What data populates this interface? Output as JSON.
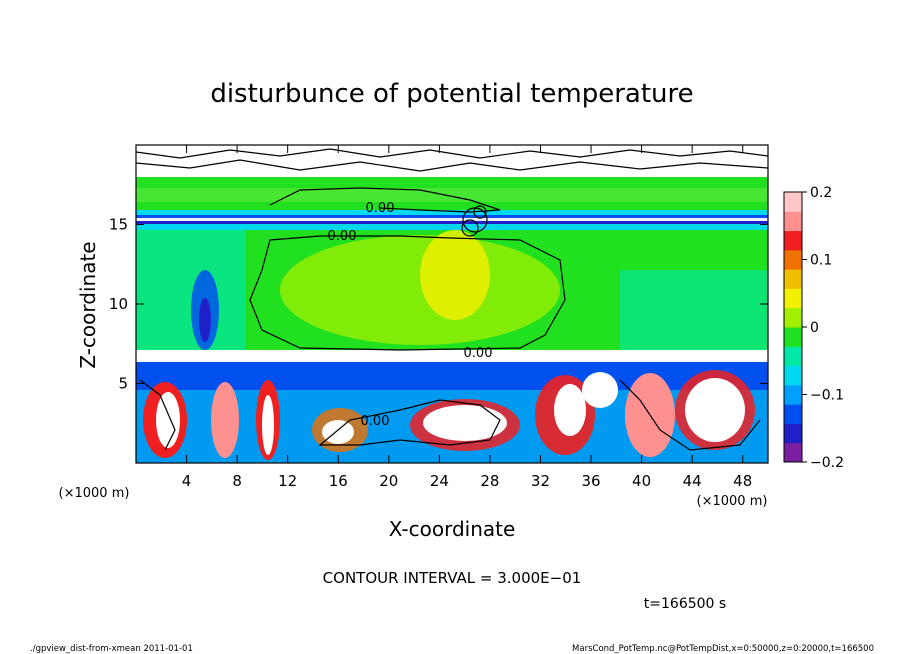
{
  "chart_data": {
    "type": "heatmap",
    "title": "disturbunce of potential temperature",
    "xlabel": "X-coordinate",
    "ylabel": "Z-coordinate",
    "x_unit_label": "(×1000 m)",
    "y_unit_label": "(×1000 m)",
    "xlim": [
      0,
      50
    ],
    "ylim": [
      0,
      20
    ],
    "x_ticks": [
      4,
      8,
      12,
      16,
      20,
      24,
      28,
      32,
      36,
      40,
      44,
      48
    ],
    "y_ticks": [
      5,
      10,
      15
    ],
    "colorbar": {
      "range": [
        -0.2,
        0.2
      ],
      "ticks": [
        -0.2,
        -0.1,
        0,
        0.1,
        0.2
      ],
      "tick_labels": [
        "−0.2",
        "−0.1",
        "0",
        "0.1",
        "0.2"
      ],
      "colors": [
        "#7a1fa0",
        "#2020c8",
        "#0050f0",
        "#00a0ff",
        "#00d8f0",
        "#00e8a8",
        "#20e020",
        "#a0f000",
        "#f0f000",
        "#f0c000",
        "#f07000",
        "#f02020",
        "#ff9090",
        "#ffc8c8"
      ]
    },
    "contour_labels": [
      "0.00",
      "0.00",
      "0.00",
      "0.00"
    ],
    "contour_interval_text": "CONTOUR INTERVAL = 3.000E−01",
    "time_label": "t=166500 s",
    "regions": [
      {
        "x": [
          0,
          50
        ],
        "z": [
          18.1,
          19.5
        ],
        "value": 0.0
      },
      {
        "x": [
          0,
          50
        ],
        "z": [
          15.3,
          18.1
        ],
        "value": 0.02
      },
      {
        "x": [
          0,
          50
        ],
        "z": [
          14.9,
          15.3
        ],
        "value": -0.2
      },
      {
        "x": [
          0,
          50
        ],
        "z": [
          6.5,
          14.9
        ],
        "value": 0.0
      },
      {
        "x": [
          0,
          50
        ],
        "z": [
          0,
          6.5
        ],
        "value": -0.06
      }
    ]
  },
  "footer": {
    "left": "./gpview_dist-from-xmean  2011-01-01",
    "right": "MarsCond_PotTemp.nc@PotTempDist,x=0:50000,z=0:20000,t=166500"
  },
  "colors": {
    "background": "#ffffff",
    "frame": "#000000"
  }
}
